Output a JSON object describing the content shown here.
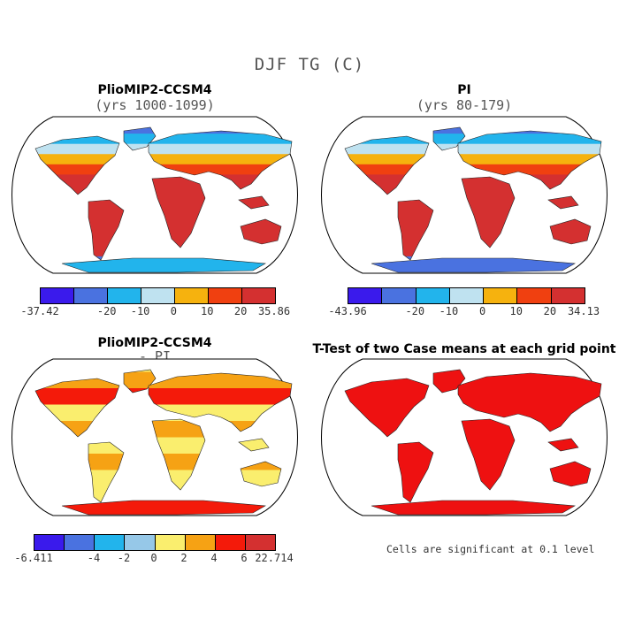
{
  "title": "DJF TG (C)",
  "panels": [
    {
      "title": "PlioMIP2-CCSM4",
      "subtitle": "(yrs 1000-1099)",
      "colorbar": {
        "colors": [
          "#3a1aec",
          "#4a72e0",
          "#22b4ec",
          "#bfe2f0",
          "#f6b20e",
          "#f04010",
          "#d43030"
        ],
        "ticks": [
          "-37.42",
          "-20",
          "-10",
          "0",
          "10",
          "20",
          "35.86"
        ]
      }
    },
    {
      "title": "PI",
      "subtitle": "(yrs 80-179)",
      "colorbar": {
        "colors": [
          "#3a1aec",
          "#4a72e0",
          "#22b4ec",
          "#bfe2f0",
          "#f6b20e",
          "#f04010",
          "#d43030"
        ],
        "ticks": [
          "-43.96",
          "-20",
          "-10",
          "0",
          "10",
          "20",
          "34.13"
        ]
      }
    },
    {
      "title": "PlioMIP2-CCSM4",
      "subtitle": "- PI",
      "colorbar": {
        "colors": [
          "#3a1aec",
          "#4a72e0",
          "#22b4ec",
          "#96c8e8",
          "#faee6e",
          "#f6a214",
          "#f41a0a",
          "#d43030"
        ],
        "ticks": [
          "-6.411",
          "-4",
          "-2",
          "0",
          "2",
          "4",
          "6",
          "22.714"
        ]
      }
    },
    {
      "title": "T-Test of two Case means at each grid point",
      "subtitle": "",
      "note": "Cells are significant at 0.1 level"
    }
  ]
}
